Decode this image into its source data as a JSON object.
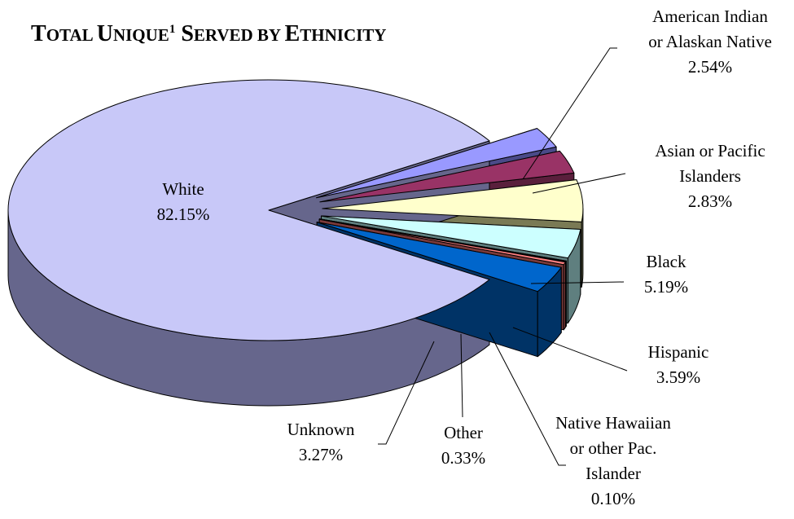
{
  "chart_data": {
    "type": "pie",
    "style": "3d-exploded",
    "title": {
      "parts": [
        {
          "text": "T",
          "size": "big"
        },
        {
          "text": "OTAL ",
          "size": "small"
        },
        {
          "text": "U",
          "size": "big"
        },
        {
          "text": "NIQUE",
          "size": "small"
        },
        {
          "text": "1",
          "size": "sup"
        },
        {
          "text": " S",
          "size": "big"
        },
        {
          "text": "ERVED BY ",
          "size": "small"
        },
        {
          "text": "E",
          "size": "big"
        },
        {
          "text": "THNICITY",
          "size": "small"
        }
      ]
    },
    "slices": [
      {
        "name": "White",
        "label_lines": [
          "White"
        ],
        "value_label": "82.15%",
        "value": 82.15,
        "color": "#c8c8f8",
        "side_color": "#66668c"
      },
      {
        "name": "American Indian or Alaskan Native",
        "label_lines": [
          "American Indian",
          "or Alaskan Native"
        ],
        "value_label": "2.54%",
        "value": 2.54,
        "color": "#9999ff",
        "side_color": "#4a4a88"
      },
      {
        "name": "Asian or Pacific Islanders",
        "label_lines": [
          "Asian or Pacific",
          "Islanders"
        ],
        "value_label": "2.83%",
        "value": 2.83,
        "color": "#993366",
        "side_color": "#5a1f3c"
      },
      {
        "name": "Black",
        "label_lines": [
          "Black"
        ],
        "value_label": "5.19%",
        "value": 5.19,
        "color": "#ffffcc",
        "side_color": "#7a7a55"
      },
      {
        "name": "Hispanic",
        "label_lines": [
          "Hispanic"
        ],
        "value_label": "3.59%",
        "value": 3.59,
        "color": "#ccffff",
        "side_color": "#5f7f7f"
      },
      {
        "name": "Native Hawaiian or other Pac. Islander",
        "label_lines": [
          "Native Hawaiian",
          "or other Pac.",
          "Islander"
        ],
        "value_label": "0.10%",
        "value": 0.1,
        "color": "#660066",
        "side_color": "#330033"
      },
      {
        "name": "Other",
        "label_lines": [
          "Other"
        ],
        "value_label": "0.33%",
        "value": 0.33,
        "color": "#ff8080",
        "side_color": "#7a3a3a"
      },
      {
        "name": "Unknown",
        "label_lines": [
          "Unknown"
        ],
        "value_label": "3.27%",
        "value": 3.27,
        "color": "#0066cc",
        "side_color": "#003366"
      }
    ]
  }
}
